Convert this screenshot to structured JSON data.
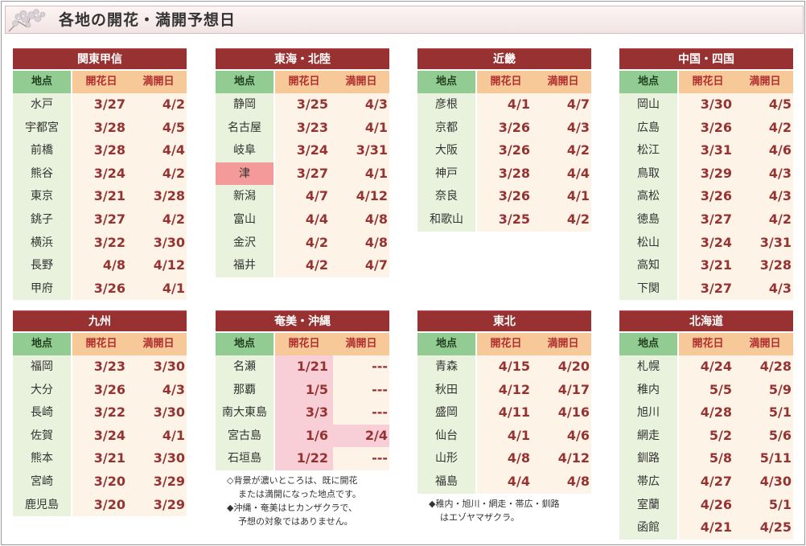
{
  "page_title": "各地の開花・満開予想日",
  "columns": {
    "location": "地点",
    "bloom": "開花日",
    "full": "満開日"
  },
  "colors": {
    "region_header": "#983232",
    "location_header": "#93cc93",
    "date_header": "#f7c898",
    "location_cell": "#e8f2dc",
    "date_cell": "#fdf3e6",
    "highlight_location": "#f59a9a",
    "highlight_date": "#f8cfd6"
  },
  "regions": [
    {
      "name": "関東甲信",
      "rows": [
        {
          "location": "水戸",
          "bloom": "3/27",
          "full": "4/2"
        },
        {
          "location": "宇都宮",
          "bloom": "3/28",
          "full": "4/5"
        },
        {
          "location": "前橋",
          "bloom": "3/28",
          "full": "4/4"
        },
        {
          "location": "熊谷",
          "bloom": "3/24",
          "full": "4/2"
        },
        {
          "location": "東京",
          "bloom": "3/21",
          "full": "3/28"
        },
        {
          "location": "銚子",
          "bloom": "3/27",
          "full": "4/2"
        },
        {
          "location": "横浜",
          "bloom": "3/22",
          "full": "3/30"
        },
        {
          "location": "長野",
          "bloom": "4/8",
          "full": "4/12"
        },
        {
          "location": "甲府",
          "bloom": "3/26",
          "full": "4/1"
        }
      ]
    },
    {
      "name": "東海・北陸",
      "rows": [
        {
          "location": "静岡",
          "bloom": "3/25",
          "full": "4/3"
        },
        {
          "location": "名古屋",
          "bloom": "3/23",
          "full": "4/1"
        },
        {
          "location": "岐阜",
          "bloom": "3/24",
          "full": "3/31"
        },
        {
          "location": "津",
          "bloom": "3/27",
          "full": "4/1",
          "hl_loc": true
        },
        {
          "location": "新潟",
          "bloom": "4/7",
          "full": "4/12"
        },
        {
          "location": "富山",
          "bloom": "4/4",
          "full": "4/8"
        },
        {
          "location": "金沢",
          "bloom": "4/2",
          "full": "4/8"
        },
        {
          "location": "福井",
          "bloom": "4/2",
          "full": "4/7"
        }
      ]
    },
    {
      "name": "近畿",
      "rows": [
        {
          "location": "彦根",
          "bloom": "4/1",
          "full": "4/7"
        },
        {
          "location": "京都",
          "bloom": "3/26",
          "full": "4/3"
        },
        {
          "location": "大阪",
          "bloom": "3/26",
          "full": "4/2"
        },
        {
          "location": "神戸",
          "bloom": "3/28",
          "full": "4/4"
        },
        {
          "location": "奈良",
          "bloom": "3/26",
          "full": "4/1"
        },
        {
          "location": "和歌山",
          "bloom": "3/25",
          "full": "4/2"
        }
      ]
    },
    {
      "name": "中国・四国",
      "rows": [
        {
          "location": "岡山",
          "bloom": "3/30",
          "full": "4/5"
        },
        {
          "location": "広島",
          "bloom": "3/26",
          "full": "4/2"
        },
        {
          "location": "松江",
          "bloom": "3/31",
          "full": "4/6"
        },
        {
          "location": "鳥取",
          "bloom": "3/29",
          "full": "4/3"
        },
        {
          "location": "高松",
          "bloom": "3/26",
          "full": "4/3"
        },
        {
          "location": "徳島",
          "bloom": "3/27",
          "full": "4/2"
        },
        {
          "location": "松山",
          "bloom": "3/24",
          "full": "3/31"
        },
        {
          "location": "高知",
          "bloom": "3/21",
          "full": "3/28"
        },
        {
          "location": "下関",
          "bloom": "3/27",
          "full": "4/3"
        }
      ]
    },
    {
      "name": "九州",
      "rows": [
        {
          "location": "福岡",
          "bloom": "3/23",
          "full": "3/30"
        },
        {
          "location": "大分",
          "bloom": "3/26",
          "full": "4/3"
        },
        {
          "location": "長崎",
          "bloom": "3/22",
          "full": "3/30"
        },
        {
          "location": "佐賀",
          "bloom": "3/24",
          "full": "4/1"
        },
        {
          "location": "熊本",
          "bloom": "3/21",
          "full": "3/30"
        },
        {
          "location": "宮崎",
          "bloom": "3/20",
          "full": "3/29"
        },
        {
          "location": "鹿児島",
          "bloom": "3/20",
          "full": "3/29"
        }
      ]
    },
    {
      "name": "奄美・沖縄",
      "rows": [
        {
          "location": "名瀬",
          "bloom": "1/21",
          "full": "---",
          "hl_bloom": true
        },
        {
          "location": "那覇",
          "bloom": "1/5",
          "full": "---",
          "hl_bloom": true
        },
        {
          "location": "南大東島",
          "bloom": "3/3",
          "full": "---",
          "hl_bloom": true
        },
        {
          "location": "宮古島",
          "bloom": "1/6",
          "full": "2/4",
          "hl_bloom": true,
          "hl_full": true
        },
        {
          "location": "石垣島",
          "bloom": "1/22",
          "full": "---",
          "hl_bloom": true
        }
      ],
      "notes": [
        "◇背景が濃いところは、既に開花",
        "または満開になった地点です。",
        "◆沖縄・奄美はヒカンザクラで、",
        "予想の対象ではありません。"
      ]
    },
    {
      "name": "東北",
      "rows": [
        {
          "location": "青森",
          "bloom": "4/15",
          "full": "4/20"
        },
        {
          "location": "秋田",
          "bloom": "4/12",
          "full": "4/17"
        },
        {
          "location": "盛岡",
          "bloom": "4/11",
          "full": "4/16"
        },
        {
          "location": "仙台",
          "bloom": "4/1",
          "full": "4/6"
        },
        {
          "location": "山形",
          "bloom": "4/8",
          "full": "4/12"
        },
        {
          "location": "福島",
          "bloom": "4/4",
          "full": "4/8"
        }
      ],
      "notes": [
        "◆稚内・旭川・網走・帯広・釧路",
        "はエゾヤマザクラ。"
      ]
    },
    {
      "name": "北海道",
      "rows": [
        {
          "location": "札幌",
          "bloom": "4/24",
          "full": "4/28"
        },
        {
          "location": "稚内",
          "bloom": "5/5",
          "full": "5/9"
        },
        {
          "location": "旭川",
          "bloom": "4/28",
          "full": "5/1"
        },
        {
          "location": "網走",
          "bloom": "5/2",
          "full": "5/6"
        },
        {
          "location": "釧路",
          "bloom": "5/8",
          "full": "5/11"
        },
        {
          "location": "帯広",
          "bloom": "4/27",
          "full": "4/30"
        },
        {
          "location": "室蘭",
          "bloom": "4/26",
          "full": "5/1"
        },
        {
          "location": "函館",
          "bloom": "4/21",
          "full": "4/25"
        }
      ]
    }
  ]
}
